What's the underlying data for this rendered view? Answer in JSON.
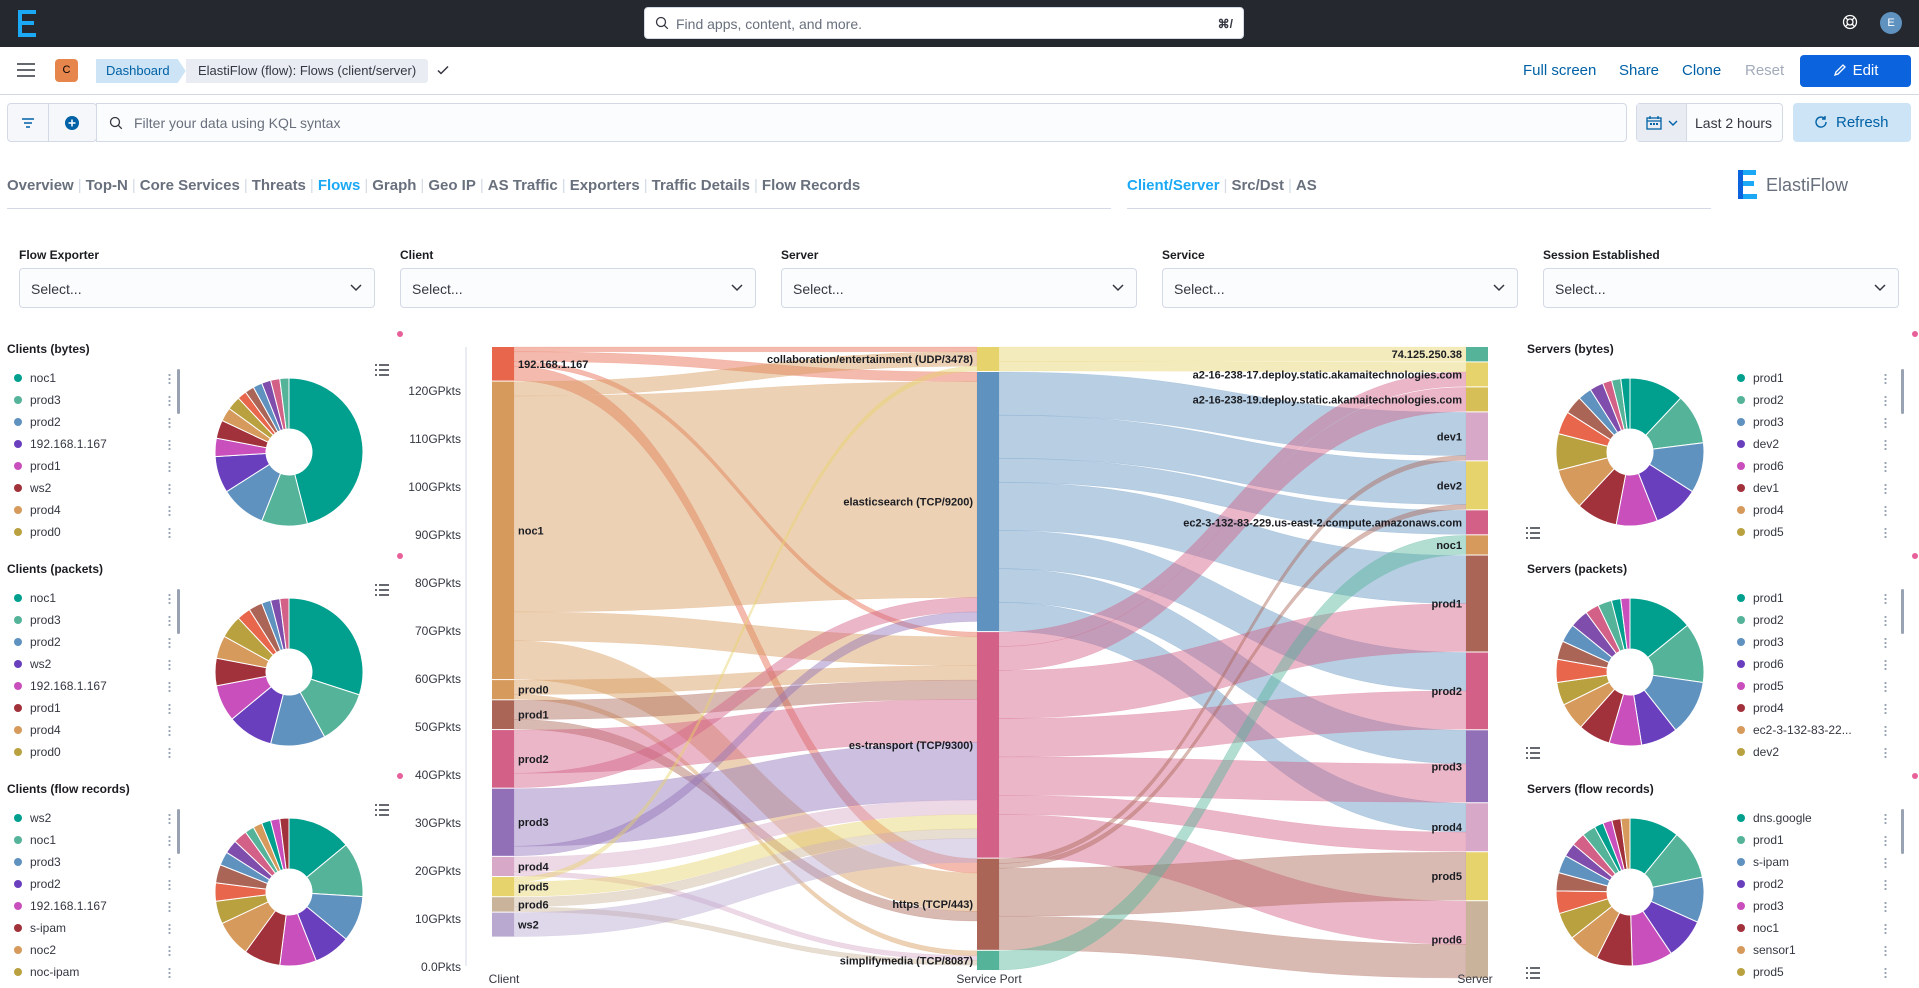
{
  "search": {
    "placeholder": "Find apps, content, and more.",
    "shortcut": "⌘/"
  },
  "user": {
    "initial": "E"
  },
  "space": {
    "initial": "C"
  },
  "breadcrumbs": [
    "Dashboard",
    "ElastiFlow (flow): Flows (client/server)"
  ],
  "toolbar": {
    "full_screen": "Full screen",
    "share": "Share",
    "clone": "Clone",
    "reset": "Reset",
    "edit": "Edit"
  },
  "query": {
    "placeholder": "Filter your data using KQL syntax",
    "time": "Last 2 hours",
    "refresh": "Refresh"
  },
  "nav_main": [
    {
      "label": "Overview",
      "active": false
    },
    {
      "label": "Top-N",
      "active": false
    },
    {
      "label": "Core Services",
      "active": false
    },
    {
      "label": "Threats",
      "active": false
    },
    {
      "label": "Flows",
      "active": true
    },
    {
      "label": "Graph",
      "active": false
    },
    {
      "label": "Geo IP",
      "active": false
    },
    {
      "label": "AS Traffic",
      "active": false
    },
    {
      "label": "Exporters",
      "active": false
    },
    {
      "label": "Traffic Details",
      "active": false
    },
    {
      "label": "Flow Records",
      "active": false
    }
  ],
  "nav_sub": [
    {
      "label": "Client/Server",
      "active": true
    },
    {
      "label": "Src/Dst",
      "active": false
    },
    {
      "label": "AS",
      "active": false
    }
  ],
  "brand": "ElastiFlow",
  "filters": [
    {
      "label": "Flow Exporter",
      "placeholder": "Select..."
    },
    {
      "label": "Client",
      "placeholder": "Select..."
    },
    {
      "label": "Server",
      "placeholder": "Select..."
    },
    {
      "label": "Service",
      "placeholder": "Select..."
    },
    {
      "label": "Session Established",
      "placeholder": "Select..."
    }
  ],
  "left_panels": [
    {
      "title": "Clients (bytes)",
      "items": [
        [
          "noc1",
          "#009f8e"
        ],
        [
          "prod3",
          "#54b399"
        ],
        [
          "prod2",
          "#6092c0"
        ],
        [
          "192.168.1.167",
          "#6a3fbd"
        ],
        [
          "prod1",
          "#c94fbd"
        ],
        [
          "ws2",
          "#a1313a"
        ],
        [
          "prod4",
          "#d69a5c"
        ],
        [
          "prod0",
          "#b9a140"
        ]
      ],
      "slices": [
        [
          "#009f8e",
          46
        ],
        [
          "#54b399",
          10
        ],
        [
          "#6092c0",
          10
        ],
        [
          "#6a3fbd",
          8
        ],
        [
          "#c94fbd",
          4
        ],
        [
          "#a1313a",
          4
        ],
        [
          "#d69a5c",
          3
        ],
        [
          "#b9a140",
          3
        ],
        [
          "#e7664c",
          2
        ],
        [
          "#aa6556",
          2
        ],
        [
          "#6092c0",
          2
        ],
        [
          "#7f4dac",
          2
        ],
        [
          "#d36086",
          2
        ],
        [
          "#54b399",
          2
        ]
      ]
    },
    {
      "title": "Clients (packets)",
      "items": [
        [
          "noc1",
          "#009f8e"
        ],
        [
          "prod3",
          "#54b399"
        ],
        [
          "prod2",
          "#6092c0"
        ],
        [
          "ws2",
          "#6a3fbd"
        ],
        [
          "192.168.1.167",
          "#c94fbd"
        ],
        [
          "prod1",
          "#a1313a"
        ],
        [
          "prod4",
          "#d69a5c"
        ],
        [
          "prod0",
          "#b9a140"
        ]
      ],
      "slices": [
        [
          "#009f8e",
          30
        ],
        [
          "#54b399",
          12
        ],
        [
          "#6092c0",
          12
        ],
        [
          "#6a3fbd",
          10
        ],
        [
          "#c94fbd",
          8
        ],
        [
          "#a1313a",
          6
        ],
        [
          "#d69a5c",
          5
        ],
        [
          "#b9a140",
          5
        ],
        [
          "#e7664c",
          3
        ],
        [
          "#aa6556",
          3
        ],
        [
          "#6092c0",
          2
        ],
        [
          "#7f4dac",
          2
        ],
        [
          "#d36086",
          2
        ]
      ]
    },
    {
      "title": "Clients (flow records)",
      "items": [
        [
          "ws2",
          "#009f8e"
        ],
        [
          "noc1",
          "#54b399"
        ],
        [
          "prod3",
          "#6092c0"
        ],
        [
          "prod2",
          "#6a3fbd"
        ],
        [
          "192.168.1.167",
          "#c94fbd"
        ],
        [
          "s-ipam",
          "#a1313a"
        ],
        [
          "noc2",
          "#d69a5c"
        ],
        [
          "noc-ipam",
          "#b9a140"
        ]
      ],
      "slices": [
        [
          "#009f8e",
          14
        ],
        [
          "#54b399",
          12
        ],
        [
          "#6092c0",
          10
        ],
        [
          "#6a3fbd",
          8
        ],
        [
          "#c94fbd",
          8
        ],
        [
          "#a1313a",
          8
        ],
        [
          "#d69a5c",
          8
        ],
        [
          "#b9a140",
          5
        ],
        [
          "#e7664c",
          4
        ],
        [
          "#aa6556",
          4
        ],
        [
          "#6092c0",
          3
        ],
        [
          "#7f4dac",
          3
        ],
        [
          "#d36086",
          3
        ],
        [
          "#54b399",
          2
        ],
        [
          "#d69a5c",
          2
        ],
        [
          "#009f8e",
          2
        ],
        [
          "#c94fbd",
          2
        ],
        [
          "#a1313a",
          2
        ]
      ]
    }
  ],
  "right_panels": [
    {
      "title": "Servers (bytes)",
      "items": [
        [
          "prod1",
          "#009f8e"
        ],
        [
          "prod2",
          "#54b399"
        ],
        [
          "prod3",
          "#6092c0"
        ],
        [
          "dev2",
          "#6a3fbd"
        ],
        [
          "prod6",
          "#c94fbd"
        ],
        [
          "dev1",
          "#a1313a"
        ],
        [
          "prod4",
          "#d69a5c"
        ],
        [
          "prod5",
          "#b9a140"
        ]
      ],
      "slices": [
        [
          "#009f8e",
          12
        ],
        [
          "#54b399",
          11
        ],
        [
          "#6092c0",
          11
        ],
        [
          "#6a3fbd",
          10
        ],
        [
          "#c94fbd",
          9
        ],
        [
          "#a1313a",
          9
        ],
        [
          "#d69a5c",
          9
        ],
        [
          "#b9a140",
          8
        ],
        [
          "#e7664c",
          5
        ],
        [
          "#aa6556",
          4
        ],
        [
          "#6092c0",
          3
        ],
        [
          "#7f4dac",
          3
        ],
        [
          "#d36086",
          2
        ],
        [
          "#54b399",
          2
        ],
        [
          "#009f8e",
          2
        ]
      ]
    },
    {
      "title": "Servers (packets)",
      "items": [
        [
          "prod1",
          "#009f8e"
        ],
        [
          "prod2",
          "#54b399"
        ],
        [
          "prod3",
          "#6092c0"
        ],
        [
          "prod6",
          "#6a3fbd"
        ],
        [
          "prod5",
          "#c94fbd"
        ],
        [
          "prod4",
          "#a1313a"
        ],
        [
          "ec2-3-132-83-22...",
          "#d69a5c"
        ],
        [
          "dev2",
          "#b9a140"
        ]
      ],
      "slices": [
        [
          "#009f8e",
          14
        ],
        [
          "#54b399",
          13
        ],
        [
          "#6092c0",
          12
        ],
        [
          "#6a3fbd",
          8
        ],
        [
          "#c94fbd",
          7
        ],
        [
          "#a1313a",
          7
        ],
        [
          "#d69a5c",
          6
        ],
        [
          "#b9a140",
          5
        ],
        [
          "#e7664c",
          5
        ],
        [
          "#aa6556",
          4
        ],
        [
          "#6092c0",
          4
        ],
        [
          "#7f4dac",
          4
        ],
        [
          "#d36086",
          3
        ],
        [
          "#54b399",
          3
        ],
        [
          "#009f8e",
          2
        ],
        [
          "#c94fbd",
          2
        ]
      ]
    },
    {
      "title": "Servers (flow records)",
      "items": [
        [
          "dns.google",
          "#009f8e"
        ],
        [
          "prod1",
          "#54b399"
        ],
        [
          "s-ipam",
          "#6092c0"
        ],
        [
          "prod2",
          "#6a3fbd"
        ],
        [
          "prod3",
          "#c94fbd"
        ],
        [
          "noc1",
          "#a1313a"
        ],
        [
          "sensor1",
          "#d69a5c"
        ],
        [
          "prod5",
          "#b9a140"
        ]
      ],
      "slices": [
        [
          "#009f8e",
          11
        ],
        [
          "#54b399",
          11
        ],
        [
          "#6092c0",
          10
        ],
        [
          "#6a3fbd",
          9
        ],
        [
          "#c94fbd",
          9
        ],
        [
          "#a1313a",
          8
        ],
        [
          "#d69a5c",
          7
        ],
        [
          "#b9a140",
          6
        ],
        [
          "#e7664c",
          5
        ],
        [
          "#aa6556",
          4
        ],
        [
          "#6092c0",
          4
        ],
        [
          "#7f4dac",
          3
        ],
        [
          "#d36086",
          3
        ],
        [
          "#54b399",
          3
        ],
        [
          "#009f8e",
          2
        ],
        [
          "#c94fbd",
          2
        ],
        [
          "#a1313a",
          2
        ],
        [
          "#d69a5c",
          2
        ]
      ]
    }
  ],
  "chart_data": {
    "type": "sankey",
    "y_ticks": [
      "0.0Pkts",
      "10GPkts",
      "20GPkts",
      "30GPkts",
      "40GPkts",
      "50GPkts",
      "60GPkts",
      "70GPkts",
      "80GPkts",
      "90GPkts",
      "100GPkts",
      "110GPkts",
      "120GPkts"
    ],
    "axis_labels": [
      "Client",
      "Service Port",
      "Server"
    ],
    "ymax": 129,
    "clients": [
      {
        "name": "192.168.1.167",
        "value": 7,
        "color": "#e7664c"
      },
      {
        "name": "noc1",
        "value": 62,
        "color": "#d69a5c"
      },
      {
        "name": "prod0",
        "value": 4,
        "color": "#d69a5c"
      },
      {
        "name": "prod1",
        "value": 6,
        "color": "#aa6556"
      },
      {
        "name": "prod2",
        "value": 12,
        "color": "#d36086"
      },
      {
        "name": "prod3",
        "value": 14,
        "color": "#9170b8"
      },
      {
        "name": "prod4",
        "value": 4,
        "color": "#d8a8c8"
      },
      {
        "name": "prod5",
        "value": 4,
        "color": "#e7d36b"
      },
      {
        "name": "prod6",
        "value": 3,
        "color": "#c9b39a"
      },
      {
        "name": "ws2",
        "value": 5,
        "color": "#b9a9d0"
      }
    ],
    "services": [
      {
        "name": "collaboration/entertainment (UDP/3478)",
        "value": 5,
        "color": "#e7d36b"
      },
      {
        "name": "elasticsearch (TCP/9200)",
        "value": 54,
        "color": "#6092c0"
      },
      {
        "name": "es-transport (TCP/9300)",
        "value": 47,
        "color": "#d36086"
      },
      {
        "name": "https (TCP/443)",
        "value": 19,
        "color": "#aa6556"
      },
      {
        "name": "simplifymedia (TCP/8087)",
        "value": 4,
        "color": "#54b399"
      }
    ],
    "servers": [
      {
        "name": "74.125.250.38",
        "value": 3,
        "color": "#54b399"
      },
      {
        "name": "a2-16-238-17.deploy.static.akamaitechnologies.com",
        "value": 5,
        "color": "#e7d36b"
      },
      {
        "name": "a2-16-238-19.deploy.static.akamaitechnologies.com",
        "value": 5,
        "color": "#d6bf57"
      },
      {
        "name": "dev1",
        "value": 10,
        "color": "#d8a8c8"
      },
      {
        "name": "dev2",
        "value": 10,
        "color": "#e7d36b"
      },
      {
        "name": "ec2-3-132-83-229.us-east-2.compute.amazonaws.com",
        "value": 5,
        "color": "#d36086"
      },
      {
        "name": "noc1",
        "value": 4,
        "color": "#d69a5c"
      },
      {
        "name": "prod1",
        "value": 20,
        "color": "#aa6556"
      },
      {
        "name": "prod2",
        "value": 16,
        "color": "#d36086"
      },
      {
        "name": "prod3",
        "value": 15,
        "color": "#9170b8"
      },
      {
        "name": "prod4",
        "value": 10,
        "color": "#d8a8c8"
      },
      {
        "name": "prod5",
        "value": 10,
        "color": "#e7d36b"
      },
      {
        "name": "prod6",
        "value": 16,
        "color": "#c9b39a"
      }
    ],
    "links_left": [
      [
        0,
        0,
        1
      ],
      [
        0,
        1,
        2
      ],
      [
        0,
        2,
        1
      ],
      [
        0,
        3,
        3
      ],
      [
        1,
        0,
        3
      ],
      [
        1,
        1,
        45
      ],
      [
        1,
        2,
        6
      ],
      [
        1,
        3,
        8
      ],
      [
        2,
        2,
        3
      ],
      [
        2,
        4,
        1
      ],
      [
        3,
        2,
        4
      ],
      [
        3,
        3,
        2
      ],
      [
        4,
        2,
        9
      ],
      [
        4,
        1,
        3
      ],
      [
        5,
        2,
        12
      ],
      [
        5,
        1,
        2
      ],
      [
        6,
        2,
        3
      ],
      [
        6,
        4,
        1
      ],
      [
        7,
        0,
        1
      ],
      [
        7,
        2,
        3
      ],
      [
        8,
        2,
        2
      ],
      [
        8,
        4,
        1
      ],
      [
        9,
        2,
        5
      ]
    ],
    "links_right": [
      [
        0,
        0,
        3
      ],
      [
        0,
        1,
        2
      ],
      [
        1,
        3,
        9
      ],
      [
        1,
        4,
        9
      ],
      [
        1,
        5,
        5
      ],
      [
        1,
        7,
        10
      ],
      [
        1,
        8,
        8
      ],
      [
        1,
        9,
        7
      ],
      [
        1,
        10,
        6
      ],
      [
        2,
        1,
        3
      ],
      [
        2,
        2,
        5
      ],
      [
        2,
        7,
        10
      ],
      [
        2,
        8,
        8
      ],
      [
        2,
        9,
        8
      ],
      [
        2,
        10,
        4
      ],
      [
        2,
        12,
        9
      ],
      [
        3,
        3,
        1
      ],
      [
        3,
        4,
        1
      ],
      [
        3,
        11,
        10
      ],
      [
        3,
        12,
        7
      ],
      [
        4,
        6,
        4
      ]
    ]
  }
}
